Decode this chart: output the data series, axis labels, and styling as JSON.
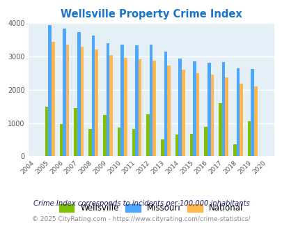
{
  "title": "Wellsville Property Crime Index",
  "title_color": "#1874CD",
  "years": [
    "2004",
    "2005",
    "2006",
    "2007",
    "2008",
    "2009",
    "2010",
    "2011",
    "2012",
    "2013",
    "2014",
    "2015",
    "2016",
    "2017",
    "2018",
    "2019",
    "2020"
  ],
  "wellsville": [
    0,
    1500,
    960,
    1460,
    820,
    1240,
    860,
    830,
    1260,
    520,
    660,
    670,
    880,
    1590,
    370,
    1060,
    0
  ],
  "missouri": [
    0,
    3940,
    3830,
    3720,
    3630,
    3390,
    3360,
    3340,
    3350,
    3150,
    2940,
    2860,
    2810,
    2830,
    2640,
    2630,
    0
  ],
  "national": [
    0,
    3440,
    3360,
    3280,
    3210,
    3040,
    2950,
    2920,
    2870,
    2730,
    2600,
    2500,
    2460,
    2370,
    2190,
    2100,
    0
  ],
  "bar_width": 0.22,
  "wellsville_color": "#80C000",
  "missouri_color": "#4DA6FF",
  "national_color": "#FFB84D",
  "bg_color": "#E4F0F5",
  "ylim": [
    0,
    4000
  ],
  "yticks": [
    0,
    1000,
    2000,
    3000,
    4000
  ],
  "footnote1": "Crime Index corresponds to incidents per 100,000 inhabitants",
  "footnote2": "© 2025 CityRating.com - https://www.cityrating.com/crime-statistics/",
  "footnote1_color": "#1a1a6e",
  "footnote2_color": "#888888",
  "legend_labels": [
    "Wellsville",
    "Missouri",
    "National"
  ]
}
